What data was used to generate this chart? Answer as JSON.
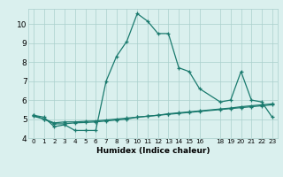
{
  "xlabel": "Humidex (Indice chaleur)",
  "x_values": [
    0,
    1,
    2,
    3,
    4,
    5,
    6,
    7,
    8,
    9,
    10,
    11,
    12,
    13,
    14,
    15,
    16,
    18,
    19,
    20,
    21,
    22,
    23
  ],
  "line1": [
    5.2,
    5.1,
    4.6,
    4.7,
    4.4,
    4.4,
    4.4,
    7.0,
    8.3,
    9.1,
    10.55,
    10.15,
    9.5,
    9.5,
    7.7,
    7.5,
    6.6,
    5.9,
    6.0,
    7.5,
    6.0,
    5.9,
    5.1
  ],
  "line2": [
    5.2,
    5.0,
    4.75,
    4.75,
    4.8,
    4.82,
    4.85,
    4.9,
    4.95,
    5.0,
    5.1,
    5.15,
    5.2,
    5.28,
    5.33,
    5.38,
    5.43,
    5.53,
    5.58,
    5.65,
    5.7,
    5.75,
    5.8
  ],
  "line3": [
    5.15,
    5.0,
    4.8,
    4.85,
    4.85,
    4.88,
    4.9,
    4.95,
    5.0,
    5.05,
    5.1,
    5.15,
    5.2,
    5.25,
    5.3,
    5.35,
    5.4,
    5.5,
    5.55,
    5.6,
    5.65,
    5.7,
    5.75
  ],
  "color": "#1a7a6e",
  "bg_color": "#daf0ee",
  "ylim": [
    4.0,
    10.8
  ],
  "yticks": [
    4,
    5,
    6,
    7,
    8,
    9,
    10
  ],
  "grid_color": "#aacfcc"
}
